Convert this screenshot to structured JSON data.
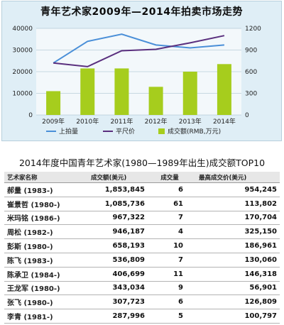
{
  "chart_data": {
    "type": "bar",
    "title": "青年艺术家2009年—2014年拍卖市场走势",
    "categories": [
      "2009年",
      "2010年",
      "2011年",
      "2012年",
      "2013年",
      "2014年"
    ],
    "ylim": [
      0,
      40000
    ],
    "y_ticks": [
      "0",
      "10000",
      "20000",
      "30000",
      "40000"
    ],
    "y2lim": [
      0,
      1200
    ],
    "y2_ticks": [
      "0",
      "300",
      "600",
      "900",
      "1200"
    ],
    "grid": true,
    "legend_position": "bottom",
    "series": [
      {
        "name": "成交额(RMB,万元)",
        "type": "bar",
        "axis": "left",
        "color": "#a6cd1d",
        "values": [
          11000,
          21500,
          21500,
          13000,
          20000,
          23500
        ]
      },
      {
        "name": "上拍量",
        "type": "line",
        "axis": "right",
        "color": "#4a8fd8",
        "values": [
          720,
          1020,
          1120,
          970,
          930,
          970
        ]
      },
      {
        "name": "平尺价",
        "type": "line",
        "axis": "right",
        "color": "#5a2f7e",
        "values": [
          720,
          670,
          890,
          910,
          1000,
          1100
        ]
      }
    ]
  },
  "table": {
    "title": "2014年度中国青年艺术家(1980—1989年出生)成交额TOP10",
    "headers": {
      "name": "艺术家名称",
      "amount": "成交额(美元)",
      "count": "成交量",
      "price": "最高成交价(美元)"
    },
    "rows": [
      {
        "name": "郝量 (1983-)",
        "amount": "1,853,845",
        "count": "6",
        "price": "954,245"
      },
      {
        "name": "崔景哲 (1980-)",
        "amount": "1,085,736",
        "count": "61",
        "price": "113,802"
      },
      {
        "name": "米玛铭 (1986-)",
        "amount": "967,322",
        "count": "7",
        "price": "170,704"
      },
      {
        "name": "周松 (1982-)",
        "amount": "946,187",
        "count": "4",
        "price": "325,150"
      },
      {
        "name": "彭斯 (1980-)",
        "amount": "658,193",
        "count": "10",
        "price": "186,961"
      },
      {
        "name": "陈飞 (1983-)",
        "amount": "536,809",
        "count": "7",
        "price": "130,060"
      },
      {
        "name": "陈承卫 (1984-)",
        "amount": "406,699",
        "count": "11",
        "price": "146,318"
      },
      {
        "name": "王龙军 (1980-)",
        "amount": "343,034",
        "count": "9",
        "price": "56,901"
      },
      {
        "name": "张飞 (1980-)",
        "amount": "307,723",
        "count": "6",
        "price": "126,809"
      },
      {
        "name": "李青 (1981-)",
        "amount": "287,996",
        "count": "5",
        "price": "100,797"
      }
    ]
  }
}
